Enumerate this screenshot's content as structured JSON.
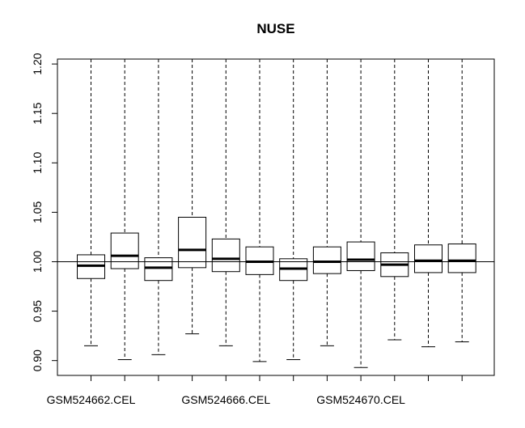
{
  "chart_data": {
    "type": "boxplot",
    "title": "NUSE",
    "xlabel": "",
    "ylabel": "",
    "ylim": [
      0.885,
      1.205
    ],
    "yticks": [
      0.9,
      0.95,
      1.0,
      1.05,
      1.1,
      1.15,
      1.2
    ],
    "ytick_labels": [
      "0.90",
      "0.95",
      "1.00",
      "1.05",
      "1.10",
      "1.15",
      "1.20"
    ],
    "reference_line": 1.0,
    "xtick_labels": [
      {
        "index": 0,
        "label": "GSM524662.CEL"
      },
      {
        "index": 4,
        "label": "GSM524666.CEL"
      },
      {
        "index": 8,
        "label": "GSM524670.CEL"
      }
    ],
    "boxes": [
      {
        "whisker_low": 0.915,
        "q1": 0.983,
        "median": 0.996,
        "q3": 1.007,
        "whisker_high": 1.205
      },
      {
        "whisker_low": 0.901,
        "q1": 0.993,
        "median": 1.006,
        "q3": 1.029,
        "whisker_high": 1.205
      },
      {
        "whisker_low": 0.906,
        "q1": 0.981,
        "median": 0.994,
        "q3": 1.004,
        "whisker_high": 1.205
      },
      {
        "whisker_low": 0.927,
        "q1": 0.994,
        "median": 1.012,
        "q3": 1.045,
        "whisker_high": 1.205
      },
      {
        "whisker_low": 0.915,
        "q1": 0.99,
        "median": 1.003,
        "q3": 1.023,
        "whisker_high": 1.205
      },
      {
        "whisker_low": 0.899,
        "q1": 0.987,
        "median": 1.0,
        "q3": 1.015,
        "whisker_high": 1.205
      },
      {
        "whisker_low": 0.901,
        "q1": 0.981,
        "median": 0.993,
        "q3": 1.003,
        "whisker_high": 1.205
      },
      {
        "whisker_low": 0.915,
        "q1": 0.988,
        "median": 1.0,
        "q3": 1.015,
        "whisker_high": 1.205
      },
      {
        "whisker_low": 0.893,
        "q1": 0.991,
        "median": 1.002,
        "q3": 1.02,
        "whisker_high": 1.205
      },
      {
        "whisker_low": 0.921,
        "q1": 0.985,
        "median": 0.997,
        "q3": 1.009,
        "whisker_high": 1.205
      },
      {
        "whisker_low": 0.914,
        "q1": 0.989,
        "median": 1.001,
        "q3": 1.017,
        "whisker_high": 1.205
      },
      {
        "whisker_low": 0.919,
        "q1": 0.989,
        "median": 1.001,
        "q3": 1.018,
        "whisker_high": 1.205
      }
    ]
  }
}
